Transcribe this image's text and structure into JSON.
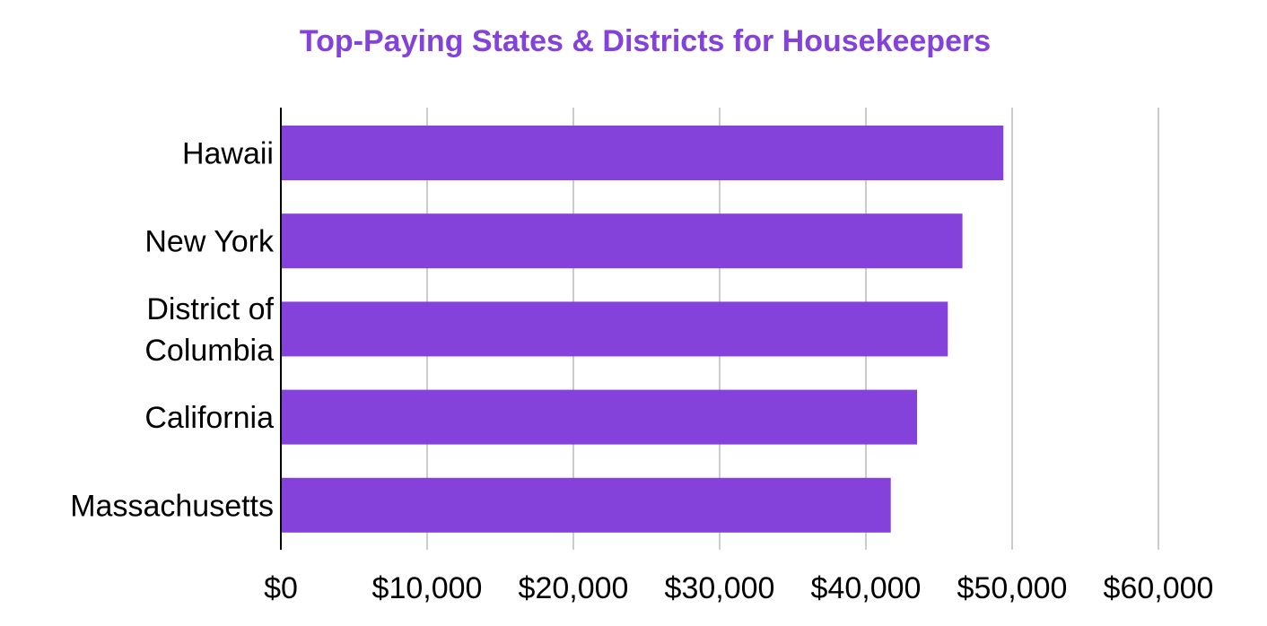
{
  "chart_data": {
    "type": "bar",
    "orientation": "horizontal",
    "title": "Top-Paying States & Districts for Housekeepers",
    "categories": [
      "Hawaii",
      "New York",
      "District of Columbia",
      "California",
      "Massachusetts"
    ],
    "category_label_lines": [
      [
        "Hawaii"
      ],
      [
        "New York"
      ],
      [
        "District of",
        "Columbia"
      ],
      [
        "California"
      ],
      [
        "Massachusetts"
      ]
    ],
    "values": [
      49400,
      46600,
      45600,
      43500,
      41700
    ],
    "xlim": [
      0,
      60000
    ],
    "x_ticks": [
      0,
      10000,
      20000,
      30000,
      40000,
      50000,
      60000
    ],
    "x_tick_labels": [
      "$0",
      "$10,000",
      "$20,000",
      "$30,000",
      "$40,000",
      "$50,000",
      "$60,000"
    ],
    "xlabel": "",
    "ylabel": "",
    "grid": "vertical",
    "legend": "none",
    "colors": {
      "bar": "#8542da",
      "title": "#8542da",
      "grid": "#cccccc",
      "axis": "#000000"
    }
  }
}
